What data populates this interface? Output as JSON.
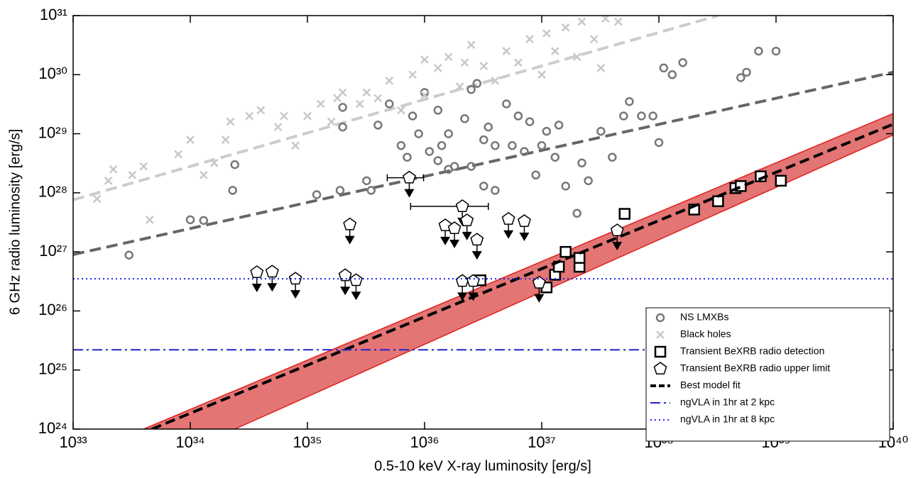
{
  "chart_data": {
    "type": "scatter",
    "xlabel": "0.5-10 keV X-ray luminosity [erg/s]",
    "ylabel": "6 GHz radio luminosity [erg/s]",
    "log_x": true,
    "log_y": true,
    "xlim": [
      1e+33,
      1e+40
    ],
    "ylim": [
      1e+24,
      1e+31
    ],
    "xticks": [
      {
        "value": 1e+33,
        "label": "10³³"
      },
      {
        "value": 1e+34,
        "label": "10³⁴"
      },
      {
        "value": 1e+35,
        "label": "10³⁵"
      },
      {
        "value": 1e+36,
        "label": "10³⁶"
      },
      {
        "value": 1e+37,
        "label": "10³⁷"
      },
      {
        "value": 1e+38,
        "label": "10³⁸"
      },
      {
        "value": 1e+39,
        "label": "10³⁹"
      },
      {
        "value": 1e+40,
        "label": "10⁴⁰"
      }
    ],
    "yticks": [
      {
        "value": 1e+24,
        "label": "10²⁴"
      },
      {
        "value": 1e+25,
        "label": "10²⁵"
      },
      {
        "value": 1e+26,
        "label": "10²⁶"
      },
      {
        "value": 1e+27,
        "label": "10²⁷"
      },
      {
        "value": 1e+28,
        "label": "10²⁸"
      },
      {
        "value": 1e+29,
        "label": "10²⁹"
      },
      {
        "value": 1e+30,
        "label": "10³⁰"
      },
      {
        "value": 1e+31,
        "label": "10³¹"
      }
    ],
    "legend": "lower right",
    "band": {
      "color": "#e06666",
      "edge_color": "#e0201c",
      "upper": {
        "x": [
          4e+33,
          1e+40
        ],
        "values": [
          1e+24,
          2.2e+29
        ]
      },
      "lower": {
        "x": [
          2.4e+34,
          1e+40
        ],
        "values": [
          1e+24,
          9.5e+28
        ]
      }
    },
    "fit_lines": [
      {
        "color": "#cccccc",
        "x": [
          1e+33,
          3.2e+38
        ],
        "values": [
          7.6e+27,
          1e+31
        ]
      },
      {
        "color": "#666666",
        "x": [
          1e+33,
          1e+40
        ],
        "values": [
          9e+26,
          1.1e+30
        ]
      }
    ],
    "series": [
      {
        "name": "NS LMXBs",
        "marker": "circle",
        "color": "#777777",
        "x": [
          3e+33,
          1e+34,
          1.3e+34,
          2.3e+34,
          2.4e+34,
          1.2e+35,
          1.9e+35,
          2e+35,
          2e+35,
          3.2e+35,
          3.5e+35,
          4e+35,
          5e+35,
          6.3e+35,
          7.1e+35,
          7.9e+35,
          8.9e+35,
          1e+36,
          1.1e+36,
          1.3e+36,
          1.3e+36,
          1.4e+36,
          1.6e+36,
          1.6e+36,
          1.8e+36,
          2.2e+36,
          2.5e+36,
          2.5e+36,
          2.8e+36,
          3.2e+36,
          3.2e+36,
          3.5e+36,
          4e+36,
          4e+36,
          5e+36,
          5.6e+36,
          6.3e+36,
          7.1e+36,
          7.9e+36,
          8.9e+36,
          1e+37,
          1.1e+37,
          1.3e+37,
          1.4e+37,
          1.6e+37,
          2e+37,
          2.2e+37,
          2.5e+37,
          3.2e+37,
          4e+37,
          5e+37,
          5.6e+37,
          7.1e+37,
          8.9e+37,
          1e+38,
          1.1e+38,
          1.3e+38,
          1.6e+38,
          5e+38,
          5.6e+38,
          7.1e+38,
          1e+39
        ],
        "values": [
          8.8e+26,
          3.5e+27,
          3.4e+27,
          1.1e+28,
          3e+28,
          9.3e+27,
          1.1e+28,
          1.3e+29,
          2.8e+29,
          1.6e+28,
          1.1e+28,
          1.4e+29,
          3.2e+29,
          6.3e+28,
          4e+28,
          2e+29,
          1e+29,
          5e+29,
          5e+28,
          2.5e+29,
          3.5e+28,
          6.3e+28,
          2.5e+28,
          1e+29,
          2.8e+28,
          1.8e+29,
          2.8e+28,
          5.6e+29,
          7.1e+29,
          1.3e+28,
          7.9e+28,
          1.3e+29,
          6.3e+28,
          1.1e+28,
          3.2e+29,
          6.3e+28,
          2e+29,
          5e+28,
          1.6e+29,
          2e+28,
          6.3e+28,
          1.1e+29,
          4e+28,
          1.4e+29,
          1.3e+28,
          4.5e+27,
          3.2e+28,
          1.6e+28,
          1.1e+29,
          4e+28,
          2e+29,
          3.5e+29,
          2e+29,
          2e+29,
          7.1e+28,
          1.3e+30,
          1e+30,
          1.6e+30,
          8.9e+29,
          1.1e+30,
          2.5e+30,
          2.5e+30
        ]
      },
      {
        "name": "Black holes",
        "marker": "cross",
        "color": "#c8c8c8",
        "x": [
          1.6e+33,
          2e+33,
          2.2e+33,
          3.2e+33,
          4e+33,
          4.5e+33,
          7.9e+33,
          1e+34,
          1.3e+34,
          1.6e+34,
          2e+34,
          2.2e+34,
          3.2e+34,
          4e+34,
          5.6e+34,
          6.3e+34,
          7.9e+34,
          1e+35,
          1.3e+35,
          1.6e+35,
          1.8e+35,
          2e+35,
          2.8e+35,
          3.2e+35,
          4e+35,
          5e+35,
          6.3e+35,
          7.9e+35,
          1e+36,
          1e+36,
          1.3e+36,
          1.6e+36,
          2e+36,
          2.2e+36,
          2.5e+36,
          3.2e+36,
          4e+36,
          5e+36,
          6.3e+36,
          7.9e+36,
          1e+37,
          1.1e+37,
          1.3e+37,
          1.6e+37,
          2e+37,
          2.2e+37,
          2.8e+37,
          3.5e+37,
          3.2e+37,
          4.5e+37
        ],
        "values": [
          7.9e+27,
          1.6e+28,
          2.5e+28,
          2e+28,
          2.8e+28,
          3.5e+27,
          4.5e+28,
          7.9e+28,
          2e+28,
          3.2e+28,
          7.9e+28,
          1.6e+29,
          2e+29,
          2.5e+29,
          1.3e+29,
          2e+29,
          6.3e+28,
          2e+29,
          3.2e+29,
          1.6e+29,
          4e+29,
          5e+29,
          3.2e+29,
          5e+29,
          4e+29,
          7.9e+29,
          2.5e+29,
          1e+30,
          1.8e+30,
          4.5e+29,
          1.3e+30,
          2e+30,
          6.3e+29,
          1.6e+30,
          3.2e+30,
          1.4e+30,
          7.9e+29,
          2.5e+30,
          1.6e+30,
          4e+30,
          1e+30,
          5e+30,
          2.5e+30,
          6.3e+30,
          2e+30,
          7.9e+30,
          4e+30,
          8.9e+30,
          1.3e+30,
          7.9e+30
        ]
      },
      {
        "name": "Transient BeXRB radio detection",
        "marker": "square",
        "color": "#000000",
        "x": [
          3e+36,
          1.1e+37,
          1.3e+37,
          1.4e+37,
          1.6e+37,
          2.1e+37,
          2.1e+37,
          5.1e+37,
          2e+38,
          3.2e+38,
          4.5e+38,
          5e+38,
          7.4e+38,
          1.1e+39
        ],
        "values": [
          3.3e+26,
          2.5e+26,
          4.1e+26,
          5.6e+26,
          1e+27,
          5.6e+26,
          7.9e+26,
          4.4e+27,
          5.2e+27,
          7.2e+27,
          1.2e+28,
          1.3e+28,
          1.9e+28,
          1.6e+28
        ]
      },
      {
        "name": "Transient BeXRB radio upper limit",
        "marker": "pentagon",
        "color": "#000000",
        "x": [
          3.7e+34,
          5e+34,
          7.9e+34,
          2.1e+35,
          2.6e+35,
          2.3e+35,
          7.4e+35,
          2.1e+36,
          1.5e+36,
          1.8e+36,
          2.3e+36,
          2.8e+36,
          2.1e+36,
          2.6e+36,
          5.2e+36,
          7.1e+36,
          9.5e+36,
          4.4e+37
        ],
        "values": [
          4.5e+26,
          4.6e+26,
          3.5e+26,
          4e+26,
          3.3e+26,
          2.9e+27,
          1.8e+28,
          5.9e+27,
          2.8e+27,
          2.5e+27,
          3.4e+27,
          1.6e+27,
          3.2e+26,
          3.2e+26,
          3.6e+27,
          3.3e+27,
          3e+26,
          2.3e+27
        ],
        "x_lower": [
          null,
          null,
          null,
          null,
          null,
          null,
          4.8e+35,
          7.6e+35,
          null,
          null,
          null,
          null,
          null,
          null,
          null,
          null,
          null,
          null
        ],
        "x_upper": [
          null,
          null,
          null,
          null,
          null,
          null,
          9.8e+35,
          3.5e+36,
          null,
          null,
          null,
          null,
          null,
          null,
          null,
          null,
          null,
          null
        ]
      },
      {
        "name": "Best model fit",
        "marker": "dashed",
        "color": "#000000",
        "x": [
          4.7e+33,
          1e+40
        ],
        "values": [
          1e+24,
          1.45e+29
        ]
      },
      {
        "name": "ngVLA in 1hr at 2 kpc",
        "marker": "dashdot",
        "color": "#2222cc",
        "values": [
          2.2e+25
        ]
      },
      {
        "name": "ngVLA in 1hr at 8 kpc",
        "marker": "dotted",
        "color": "#2222ee",
        "values": [
          3.5e+26
        ]
      }
    ]
  }
}
